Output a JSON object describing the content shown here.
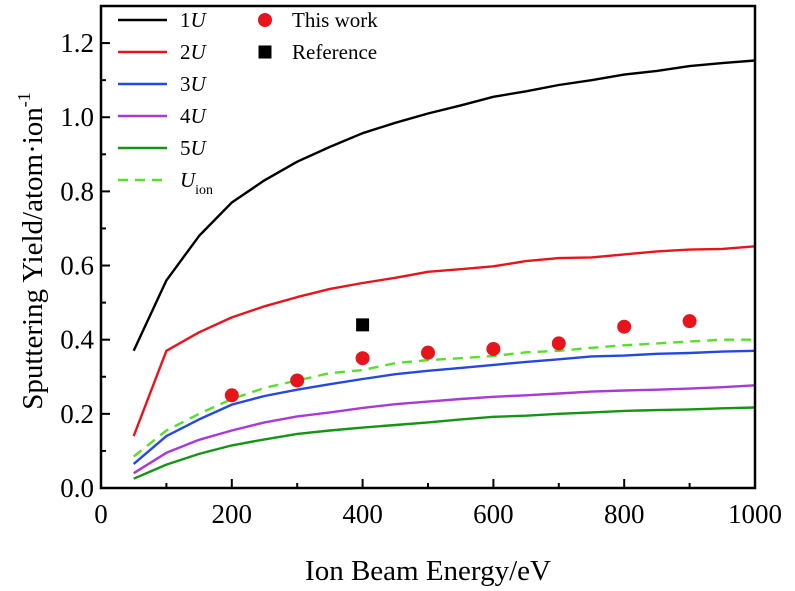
{
  "chart_data": {
    "type": "line",
    "xlabel": "Ion Beam Energy/eV",
    "ylabel": "Sputtering Yield/atom·ion",
    "ylabel_sup": "-1",
    "xlim": [
      0,
      1000
    ],
    "ylim": [
      0,
      1.3
    ],
    "xticks": [
      "0",
      "200",
      "400",
      "600",
      "800",
      "1000"
    ],
    "yticks": [
      "0.0",
      "0.2",
      "0.4",
      "0.6",
      "0.8",
      "1.0",
      "1.2"
    ],
    "grid": false,
    "legend_position": "top-left",
    "x": [
      50,
      100,
      150,
      200,
      250,
      300,
      350,
      400,
      450,
      500,
      550,
      600,
      650,
      700,
      750,
      800,
      850,
      900,
      950,
      1000
    ],
    "series": [
      {
        "name": "1U",
        "italic_part": "U",
        "prefix": "1",
        "color": "#000000",
        "dash": "",
        "values": [
          0.37,
          0.56,
          0.68,
          0.77,
          0.83,
          0.88,
          0.92,
          0.957,
          0.985,
          1.01,
          1.032,
          1.055,
          1.07,
          1.087,
          1.1,
          1.115,
          1.125,
          1.138,
          1.146,
          1.153
        ]
      },
      {
        "name": "2U",
        "italic_part": "U",
        "prefix": "2",
        "color": "#e8141c",
        "dash": "",
        "values": [
          0.14,
          0.37,
          0.42,
          0.46,
          0.49,
          0.515,
          0.537,
          0.553,
          0.567,
          0.583,
          0.59,
          0.598,
          0.612,
          0.62,
          0.622,
          0.63,
          0.638,
          0.643,
          0.645,
          0.652
        ]
      },
      {
        "name": "3U",
        "italic_part": "U",
        "prefix": "3",
        "color": "#2549e0",
        "dash": "",
        "values": [
          0.065,
          0.14,
          0.185,
          0.225,
          0.248,
          0.265,
          0.28,
          0.294,
          0.307,
          0.316,
          0.324,
          0.332,
          0.34,
          0.347,
          0.355,
          0.357,
          0.362,
          0.364,
          0.368,
          0.37
        ]
      },
      {
        "name": "4U",
        "italic_part": "U",
        "prefix": "4",
        "color": "#a93ad6",
        "dash": "",
        "values": [
          0.04,
          0.095,
          0.13,
          0.155,
          0.177,
          0.193,
          0.204,
          0.216,
          0.226,
          0.233,
          0.24,
          0.246,
          0.25,
          0.255,
          0.26,
          0.263,
          0.265,
          0.268,
          0.272,
          0.277
        ]
      },
      {
        "name": "5U",
        "italic_part": "U",
        "prefix": "5",
        "color": "#149614",
        "dash": "",
        "values": [
          0.025,
          0.063,
          0.092,
          0.115,
          0.131,
          0.146,
          0.155,
          0.163,
          0.17,
          0.177,
          0.185,
          0.192,
          0.195,
          0.2,
          0.204,
          0.208,
          0.21,
          0.212,
          0.215,
          0.217
        ]
      },
      {
        "name": "Uion",
        "italic_part": "U",
        "prefix": "",
        "sub": "ion",
        "color": "#55e02a",
        "dash": "10,7",
        "values": [
          0.085,
          0.155,
          0.2,
          0.24,
          0.27,
          0.29,
          0.31,
          0.318,
          0.337,
          0.345,
          0.35,
          0.356,
          0.366,
          0.37,
          0.378,
          0.385,
          0.39,
          0.395,
          0.4,
          0.4
        ]
      }
    ],
    "scatter": [
      {
        "name": "This work",
        "marker": "circle",
        "color": "#e8141c",
        "x": [
          200,
          300,
          400,
          500,
          600,
          700,
          800,
          900
        ],
        "y": [
          0.25,
          0.29,
          0.35,
          0.365,
          0.375,
          0.39,
          0.435,
          0.45
        ]
      },
      {
        "name": "Reference",
        "marker": "square",
        "color": "#000000",
        "x": [
          400
        ],
        "y": [
          0.44
        ]
      }
    ]
  }
}
